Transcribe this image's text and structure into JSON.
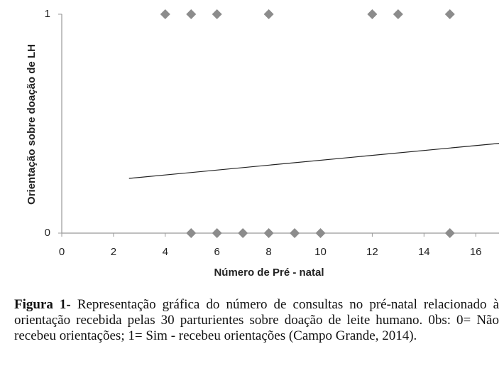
{
  "chart_data": {
    "type": "scatter",
    "x": [
      4,
      5,
      6,
      8,
      12,
      13,
      15,
      5,
      6,
      7,
      8,
      9,
      10,
      15
    ],
    "values": [
      1,
      1,
      1,
      1,
      1,
      1,
      1,
      0,
      0,
      0,
      0,
      0,
      0,
      0
    ],
    "color": "#8c8c8c",
    "trendline": {
      "x": [
        2.6,
        16.9
      ],
      "values": [
        0.25,
        0.41
      ],
      "color": "#222222"
    },
    "xlim": [
      0,
      16.9
    ],
    "xticks": [
      0,
      2,
      4,
      6,
      8,
      10,
      12,
      14,
      16
    ],
    "ylim": [
      0,
      1
    ],
    "yticks": [
      0,
      1
    ],
    "xlabel": "Número de Pré - natal",
    "ylabel": "Orientação sobre doação de LH"
  },
  "caption": {
    "label": "Figura 1-",
    "text": " Representação gráfica do número de consultas no pré-natal relacionado à orientação recebida pelas 30 parturientes sobre doação de leite humano. 0bs: 0= Não recebeu orientações; 1= Sim - recebeu orientações (Campo Grande, 2014)."
  }
}
